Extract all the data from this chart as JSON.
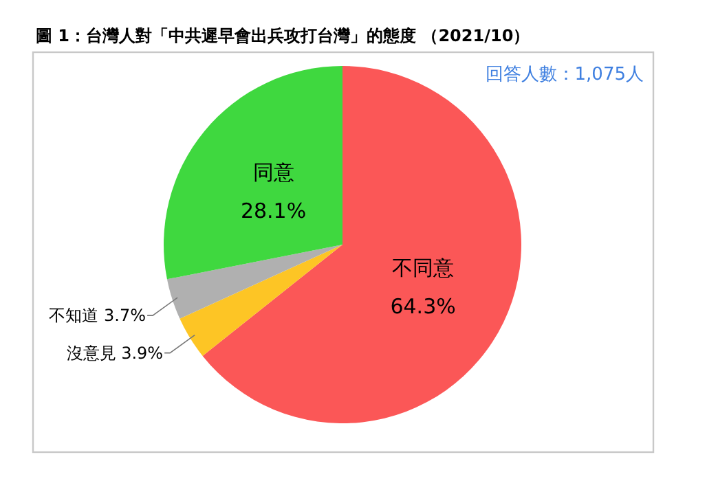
{
  "chart_data": {
    "type": "pie",
    "title": "圖 1：台灣人對「中共遲早會出兵攻打台灣」的態度 （2021/10）",
    "annotations": [
      "回答人數：1,075人"
    ],
    "categories": [
      "不同意",
      "沒意見",
      "不知道",
      "同意"
    ],
    "values": [
      64.3,
      3.9,
      3.7,
      28.1
    ],
    "colors": [
      "#fb5757",
      "#fdc525",
      "#b0b0b0",
      "#3fd83f"
    ],
    "value_labels": [
      "64.3%",
      "3.9%",
      "3.7%",
      "28.1%"
    ]
  }
}
